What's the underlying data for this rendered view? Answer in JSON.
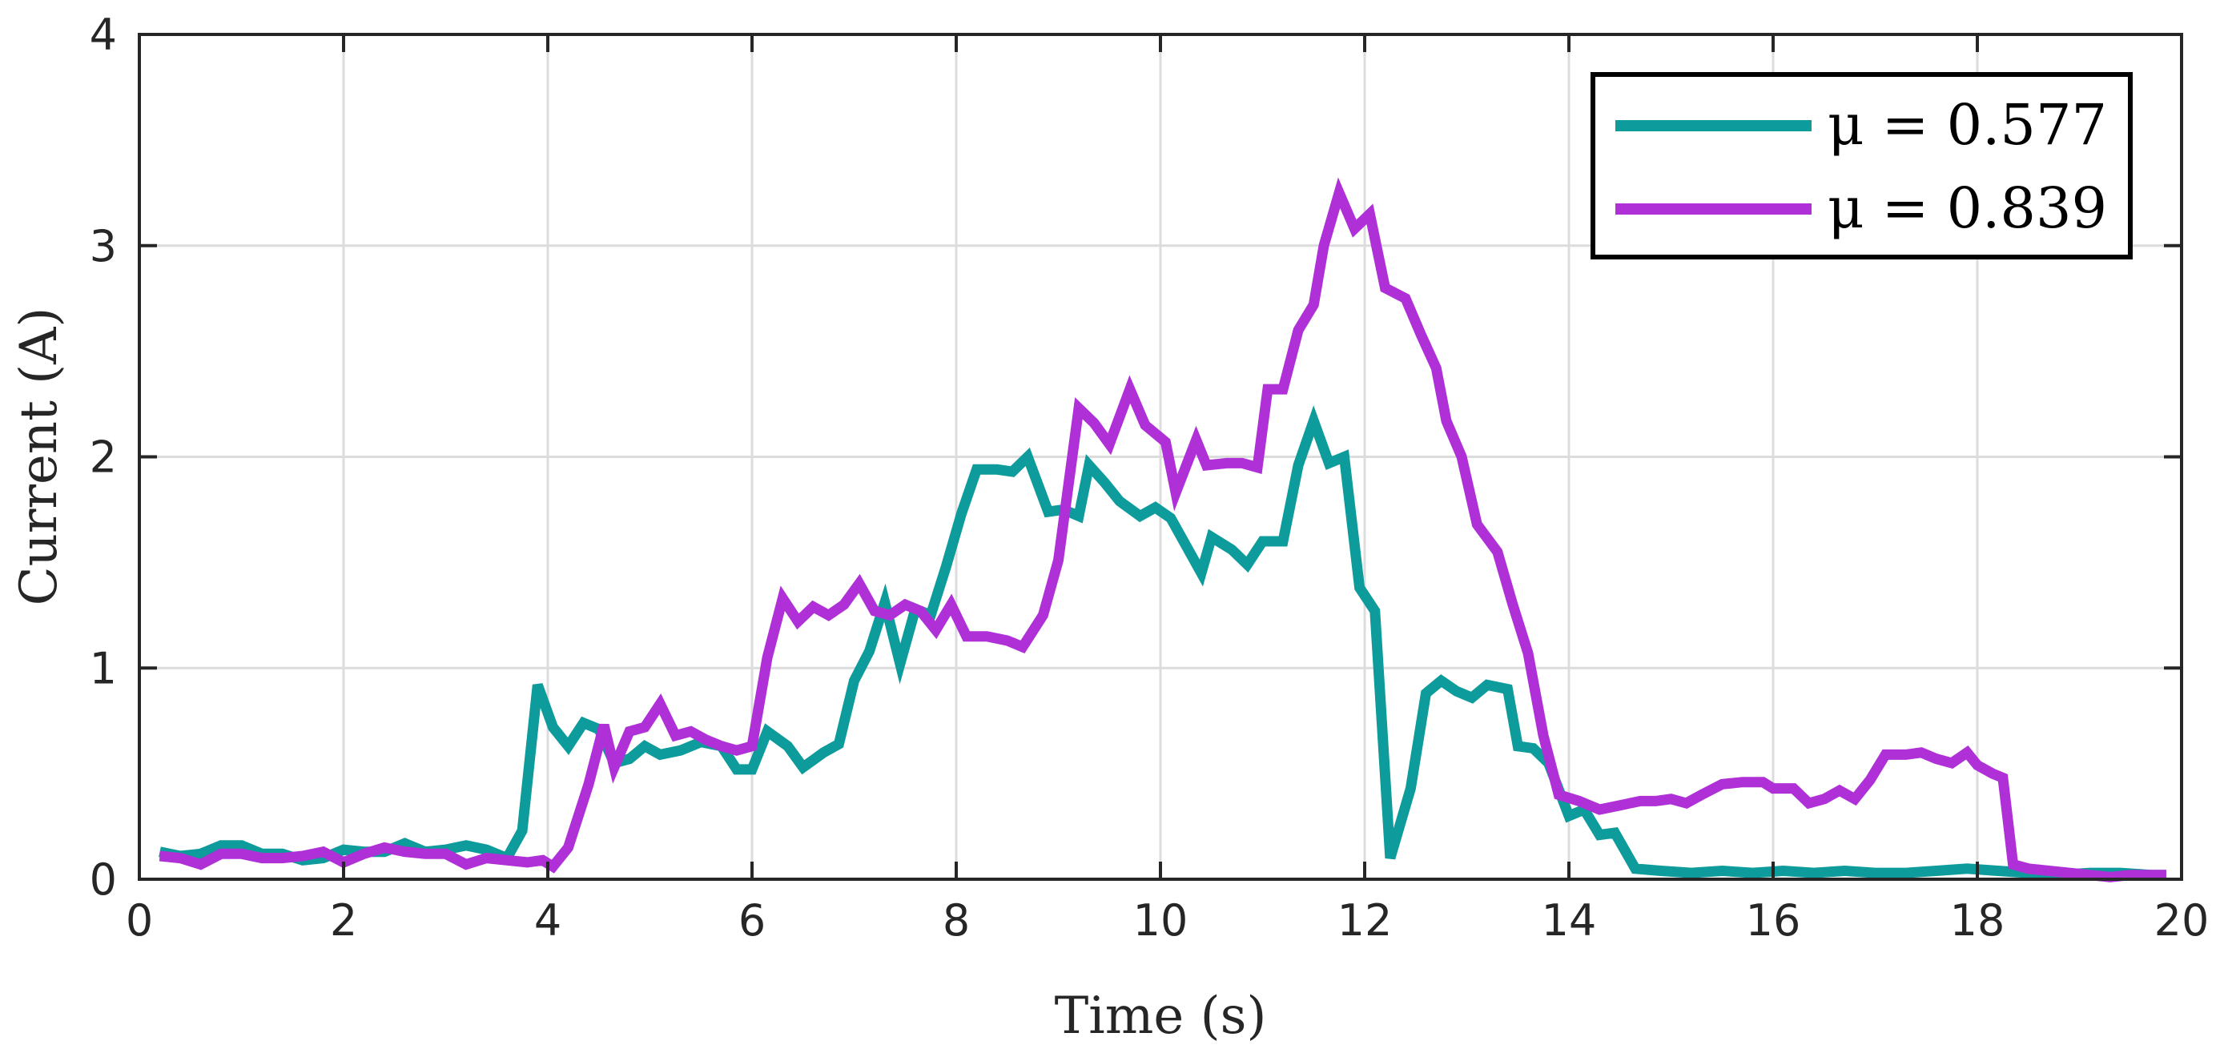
{
  "chart_data": {
    "type": "line",
    "title": "",
    "xlabel": "Time (s)",
    "ylabel": "Current (A)",
    "xlim": [
      0,
      20
    ],
    "ylim": [
      0,
      4
    ],
    "xticks": [
      "0",
      "2",
      "4",
      "6",
      "8",
      "10",
      "12",
      "14",
      "16",
      "18",
      "20"
    ],
    "yticks": [
      "0",
      "1",
      "2",
      "3",
      "4"
    ],
    "grid": true,
    "legend_position": "top-right",
    "series": [
      {
        "name": "μ = 0.577",
        "color": "#0e9b9b",
        "points": [
          [
            0.2,
            0.13
          ],
          [
            0.4,
            0.11
          ],
          [
            0.6,
            0.12
          ],
          [
            0.8,
            0.16
          ],
          [
            1.0,
            0.16
          ],
          [
            1.2,
            0.12
          ],
          [
            1.4,
            0.12
          ],
          [
            1.6,
            0.09
          ],
          [
            1.8,
            0.1
          ],
          [
            2.0,
            0.14
          ],
          [
            2.2,
            0.13
          ],
          [
            2.4,
            0.13
          ],
          [
            2.6,
            0.17
          ],
          [
            2.8,
            0.13
          ],
          [
            3.0,
            0.14
          ],
          [
            3.2,
            0.16
          ],
          [
            3.4,
            0.14
          ],
          [
            3.6,
            0.1
          ],
          [
            3.75,
            0.23
          ],
          [
            3.9,
            0.92
          ],
          [
            4.05,
            0.72
          ],
          [
            4.2,
            0.63
          ],
          [
            4.35,
            0.74
          ],
          [
            4.5,
            0.71
          ],
          [
            4.65,
            0.55
          ],
          [
            4.8,
            0.57
          ],
          [
            4.95,
            0.63
          ],
          [
            5.1,
            0.59
          ],
          [
            5.3,
            0.61
          ],
          [
            5.5,
            0.65
          ],
          [
            5.7,
            0.63
          ],
          [
            5.85,
            0.52
          ],
          [
            6.0,
            0.52
          ],
          [
            6.15,
            0.7
          ],
          [
            6.35,
            0.63
          ],
          [
            6.5,
            0.53
          ],
          [
            6.7,
            0.6
          ],
          [
            6.85,
            0.64
          ],
          [
            7.0,
            0.94
          ],
          [
            7.15,
            1.08
          ],
          [
            7.3,
            1.31
          ],
          [
            7.45,
            1.02
          ],
          [
            7.6,
            1.28
          ],
          [
            7.75,
            1.25
          ],
          [
            7.9,
            1.48
          ],
          [
            8.05,
            1.73
          ],
          [
            8.2,
            1.94
          ],
          [
            8.4,
            1.94
          ],
          [
            8.55,
            1.93
          ],
          [
            8.7,
            2.0
          ],
          [
            8.9,
            1.74
          ],
          [
            9.05,
            1.75
          ],
          [
            9.2,
            1.72
          ],
          [
            9.3,
            1.96
          ],
          [
            9.45,
            1.88
          ],
          [
            9.6,
            1.79
          ],
          [
            9.8,
            1.72
          ],
          [
            9.95,
            1.76
          ],
          [
            10.1,
            1.71
          ],
          [
            10.4,
            1.45
          ],
          [
            10.5,
            1.62
          ],
          [
            10.7,
            1.56
          ],
          [
            10.85,
            1.49
          ],
          [
            11.0,
            1.6
          ],
          [
            11.2,
            1.6
          ],
          [
            11.35,
            1.96
          ],
          [
            11.5,
            2.17
          ],
          [
            11.65,
            1.97
          ],
          [
            11.8,
            2.0
          ],
          [
            11.95,
            1.38
          ],
          [
            12.1,
            1.27
          ],
          [
            12.25,
            0.1
          ],
          [
            12.45,
            0.43
          ],
          [
            12.6,
            0.88
          ],
          [
            12.75,
            0.94
          ],
          [
            12.9,
            0.89
          ],
          [
            13.05,
            0.86
          ],
          [
            13.2,
            0.92
          ],
          [
            13.4,
            0.9
          ],
          [
            13.5,
            0.63
          ],
          [
            13.65,
            0.62
          ],
          [
            13.8,
            0.55
          ],
          [
            14.0,
            0.3
          ],
          [
            14.15,
            0.33
          ],
          [
            14.3,
            0.21
          ],
          [
            14.45,
            0.22
          ],
          [
            14.65,
            0.05
          ],
          [
            14.9,
            0.04
          ],
          [
            15.2,
            0.03
          ],
          [
            15.5,
            0.04
          ],
          [
            15.8,
            0.03
          ],
          [
            16.1,
            0.04
          ],
          [
            16.4,
            0.03
          ],
          [
            16.7,
            0.04
          ],
          [
            17.0,
            0.03
          ],
          [
            17.3,
            0.03
          ],
          [
            17.6,
            0.04
          ],
          [
            17.9,
            0.05
          ],
          [
            18.2,
            0.04
          ],
          [
            18.5,
            0.03
          ],
          [
            18.8,
            0.02
          ],
          [
            19.1,
            0.03
          ],
          [
            19.4,
            0.03
          ],
          [
            19.7,
            0.02
          ],
          [
            19.85,
            0.02
          ]
        ]
      },
      {
        "name": "μ = 0.839",
        "color": "#b030d8",
        "points": [
          [
            0.2,
            0.11
          ],
          [
            0.4,
            0.1
          ],
          [
            0.6,
            0.07
          ],
          [
            0.8,
            0.12
          ],
          [
            1.0,
            0.12
          ],
          [
            1.2,
            0.1
          ],
          [
            1.4,
            0.1
          ],
          [
            1.6,
            0.11
          ],
          [
            1.8,
            0.13
          ],
          [
            2.0,
            0.08
          ],
          [
            2.2,
            0.12
          ],
          [
            2.4,
            0.15
          ],
          [
            2.6,
            0.13
          ],
          [
            2.8,
            0.12
          ],
          [
            3.0,
            0.12
          ],
          [
            3.2,
            0.07
          ],
          [
            3.4,
            0.1
          ],
          [
            3.6,
            0.09
          ],
          [
            3.8,
            0.08
          ],
          [
            3.95,
            0.09
          ],
          [
            4.05,
            0.06
          ],
          [
            4.2,
            0.15
          ],
          [
            4.4,
            0.45
          ],
          [
            4.55,
            0.73
          ],
          [
            4.65,
            0.53
          ],
          [
            4.8,
            0.7
          ],
          [
            4.95,
            0.72
          ],
          [
            5.1,
            0.83
          ],
          [
            5.25,
            0.68
          ],
          [
            5.4,
            0.7
          ],
          [
            5.55,
            0.66
          ],
          [
            5.7,
            0.63
          ],
          [
            5.85,
            0.61
          ],
          [
            6.0,
            0.63
          ],
          [
            6.15,
            1.05
          ],
          [
            6.3,
            1.33
          ],
          [
            6.45,
            1.22
          ],
          [
            6.6,
            1.29
          ],
          [
            6.75,
            1.25
          ],
          [
            6.9,
            1.3
          ],
          [
            7.05,
            1.4
          ],
          [
            7.2,
            1.27
          ],
          [
            7.35,
            1.25
          ],
          [
            7.5,
            1.3
          ],
          [
            7.65,
            1.27
          ],
          [
            7.8,
            1.18
          ],
          [
            7.95,
            1.3
          ],
          [
            8.1,
            1.15
          ],
          [
            8.3,
            1.15
          ],
          [
            8.5,
            1.13
          ],
          [
            8.65,
            1.1
          ],
          [
            8.85,
            1.25
          ],
          [
            9.0,
            1.51
          ],
          [
            9.2,
            2.23
          ],
          [
            9.35,
            2.16
          ],
          [
            9.5,
            2.06
          ],
          [
            9.7,
            2.32
          ],
          [
            9.85,
            2.15
          ],
          [
            10.05,
            2.07
          ],
          [
            10.15,
            1.83
          ],
          [
            10.35,
            2.08
          ],
          [
            10.45,
            1.96
          ],
          [
            10.65,
            1.97
          ],
          [
            10.8,
            1.97
          ],
          [
            10.95,
            1.95
          ],
          [
            11.05,
            2.32
          ],
          [
            11.2,
            2.32
          ],
          [
            11.35,
            2.6
          ],
          [
            11.5,
            2.72
          ],
          [
            11.6,
            3.0
          ],
          [
            11.75,
            3.25
          ],
          [
            11.9,
            3.08
          ],
          [
            12.05,
            3.15
          ],
          [
            12.2,
            2.8
          ],
          [
            12.4,
            2.75
          ],
          [
            12.55,
            2.58
          ],
          [
            12.7,
            2.42
          ],
          [
            12.8,
            2.17
          ],
          [
            12.95,
            2.0
          ],
          [
            13.1,
            1.68
          ],
          [
            13.3,
            1.55
          ],
          [
            13.45,
            1.3
          ],
          [
            13.6,
            1.07
          ],
          [
            13.75,
            0.68
          ],
          [
            13.9,
            0.4
          ],
          [
            14.1,
            0.37
          ],
          [
            14.3,
            0.33
          ],
          [
            14.5,
            0.35
          ],
          [
            14.7,
            0.37
          ],
          [
            14.85,
            0.37
          ],
          [
            15.0,
            0.38
          ],
          [
            15.15,
            0.36
          ],
          [
            15.3,
            0.4
          ],
          [
            15.5,
            0.45
          ],
          [
            15.7,
            0.46
          ],
          [
            15.9,
            0.46
          ],
          [
            16.0,
            0.43
          ],
          [
            16.2,
            0.43
          ],
          [
            16.35,
            0.36
          ],
          [
            16.5,
            0.38
          ],
          [
            16.65,
            0.42
          ],
          [
            16.8,
            0.38
          ],
          [
            16.95,
            0.47
          ],
          [
            17.1,
            0.59
          ],
          [
            17.3,
            0.59
          ],
          [
            17.45,
            0.6
          ],
          [
            17.6,
            0.57
          ],
          [
            17.75,
            0.55
          ],
          [
            17.9,
            0.6
          ],
          [
            18.0,
            0.54
          ],
          [
            18.15,
            0.5
          ],
          [
            18.25,
            0.48
          ],
          [
            18.35,
            0.07
          ],
          [
            18.5,
            0.05
          ],
          [
            18.7,
            0.04
          ],
          [
            18.9,
            0.03
          ],
          [
            19.1,
            0.02
          ],
          [
            19.3,
            0.01
          ],
          [
            19.5,
            0.02
          ],
          [
            19.7,
            0.02
          ],
          [
            19.85,
            0.02
          ]
        ]
      }
    ]
  }
}
